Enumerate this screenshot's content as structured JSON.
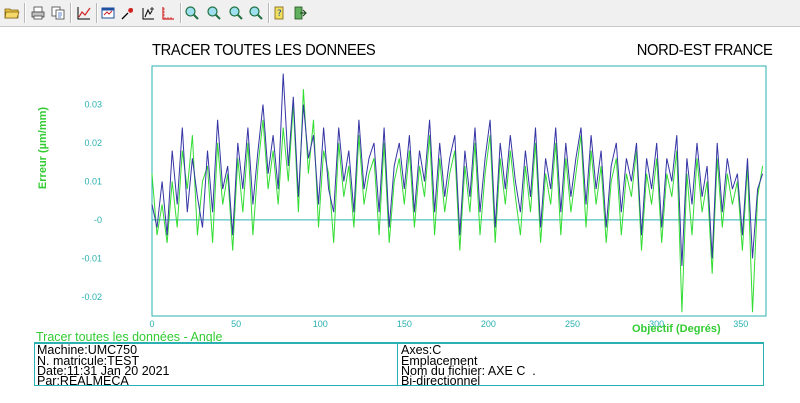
{
  "toolbar": {
    "buttons": [
      {
        "name": "open-folder-icon"
      },
      {
        "name": "print-icon"
      },
      {
        "name": "copy-icon"
      },
      {
        "name": "graph-icon"
      },
      {
        "name": "window-icon"
      },
      {
        "name": "marker-icon"
      },
      {
        "name": "cursor-icon"
      },
      {
        "name": "axis-icon"
      },
      {
        "name": "zoom-in-icon"
      },
      {
        "name": "zoom-out-icon"
      },
      {
        "name": "zoom-region-icon"
      },
      {
        "name": "zoom-fit-icon"
      },
      {
        "name": "help-icon"
      },
      {
        "name": "exit-icon"
      }
    ]
  },
  "header": {
    "title": "TRACER TOUTES LES DONNEES",
    "region": "NORD-EST FRANCE"
  },
  "colors": {
    "series_green": "#33dd33",
    "series_blue": "#3535a5",
    "axis": "#2ab0b0",
    "tick_label": "#2ab0b0",
    "ylabel": "#33cc33"
  },
  "chart_data": {
    "type": "line",
    "title": "TRACER TOUTES LES DONNEES",
    "xlabel": "Objectif (Degrés)",
    "ylabel": "Erreur (µm/mm)",
    "xlim": [
      0,
      365
    ],
    "ylim": [
      -0.025,
      0.04
    ],
    "xticks": [
      0,
      50,
      100,
      150,
      200,
      250,
      300,
      350
    ],
    "yticks": [
      0.03,
      0.02,
      0.01,
      0,
      -0.01,
      -0.02
    ],
    "ytick_labels": [
      "0.03",
      "0.02",
      "0.01",
      "-0",
      "-0.01",
      "-0.02"
    ],
    "grid": false,
    "series": [
      {
        "color": "#33dd33",
        "x": [
          0,
          3,
          6,
          9,
          12,
          15,
          18,
          21,
          24,
          27,
          30,
          33,
          36,
          39,
          42,
          45,
          48,
          51,
          54,
          57,
          60,
          63,
          66,
          69,
          72,
          75,
          78,
          81,
          84,
          87,
          90,
          93,
          96,
          99,
          102,
          105,
          108,
          111,
          114,
          117,
          120,
          123,
          126,
          129,
          132,
          135,
          138,
          141,
          144,
          147,
          150,
          153,
          156,
          159,
          162,
          165,
          168,
          171,
          174,
          177,
          180,
          183,
          186,
          189,
          192,
          195,
          198,
          201,
          204,
          207,
          210,
          213,
          216,
          219,
          222,
          225,
          228,
          231,
          234,
          237,
          240,
          243,
          246,
          249,
          252,
          255,
          258,
          261,
          264,
          267,
          270,
          273,
          276,
          279,
          282,
          285,
          288,
          291,
          294,
          297,
          300,
          303,
          306,
          309,
          312,
          315,
          318,
          321,
          324,
          327,
          330,
          333,
          336,
          339,
          342,
          345,
          348,
          351,
          354,
          357,
          360,
          363
        ],
        "y": [
          0.012,
          -0.004,
          0.004,
          -0.006,
          0.01,
          -0.002,
          0.018,
          0.008,
          0.022,
          -0.004,
          0.01,
          0.014,
          -0.006,
          0.02,
          0.004,
          0.012,
          -0.008,
          0.016,
          0.002,
          0.02,
          -0.004,
          0.014,
          0.026,
          0.008,
          0.018,
          0.004,
          0.024,
          0.01,
          0.03,
          0.002,
          0.034,
          0.012,
          0.026,
          -0.002,
          0.018,
          0.012,
          -0.006,
          0.02,
          0.006,
          0.014,
          -0.002,
          0.022,
          0.004,
          0.012,
          0.016,
          -0.004,
          0.02,
          -0.006,
          0.01,
          0.016,
          0.004,
          0.018,
          -0.002,
          0.014,
          0.006,
          0.022,
          -0.004,
          0.016,
          0.002,
          0.012,
          0.018,
          -0.008,
          0.014,
          0.002,
          0.02,
          -0.004,
          0.012,
          0.022,
          -0.006,
          0.016,
          0.004,
          0.018,
          0.006,
          -0.004,
          0.014,
          0.002,
          0.02,
          -0.006,
          0.012,
          0.004,
          0.02,
          -0.004,
          0.016,
          0.002,
          0.012,
          0.022,
          -0.002,
          0.018,
          0.004,
          0.014,
          -0.006,
          0.01,
          0.016,
          -0.004,
          0.012,
          0.006,
          0.018,
          -0.008,
          0.012,
          0.004,
          0.016,
          -0.006,
          0.012,
          0.006,
          0.018,
          -0.024,
          0.012,
          -0.004,
          0.016,
          0.002,
          0.01,
          -0.014,
          0.016,
          -0.002,
          0.012,
          0.004,
          0.01,
          -0.008,
          0.014,
          -0.024,
          0.006,
          0.014
        ]
      },
      {
        "color": "#3535a5",
        "x": [
          0,
          3,
          6,
          9,
          12,
          15,
          18,
          21,
          24,
          27,
          30,
          33,
          36,
          39,
          42,
          45,
          48,
          51,
          54,
          57,
          60,
          63,
          66,
          69,
          72,
          75,
          78,
          81,
          84,
          87,
          90,
          93,
          96,
          99,
          102,
          105,
          108,
          111,
          114,
          117,
          120,
          123,
          126,
          129,
          132,
          135,
          138,
          141,
          144,
          147,
          150,
          153,
          156,
          159,
          162,
          165,
          168,
          171,
          174,
          177,
          180,
          183,
          186,
          189,
          192,
          195,
          198,
          201,
          204,
          207,
          210,
          213,
          216,
          219,
          222,
          225,
          228,
          231,
          234,
          237,
          240,
          243,
          246,
          249,
          252,
          255,
          258,
          261,
          264,
          267,
          270,
          273,
          276,
          279,
          282,
          285,
          288,
          291,
          294,
          297,
          300,
          303,
          306,
          309,
          312,
          315,
          318,
          321,
          324,
          327,
          330,
          333,
          336,
          339,
          342,
          345,
          348,
          351,
          354,
          357,
          360,
          363
        ],
        "y": [
          0.004,
          -0.002,
          0.01,
          -0.004,
          0.018,
          0.004,
          0.024,
          0.002,
          0.016,
          0.006,
          -0.002,
          0.018,
          0.002,
          0.026,
          0.008,
          0.014,
          -0.004,
          0.02,
          0.008,
          0.024,
          0.004,
          0.018,
          0.03,
          0.012,
          0.022,
          0.008,
          0.038,
          0.014,
          0.032,
          0.006,
          0.03,
          0.016,
          0.022,
          0.004,
          0.024,
          0.008,
          0.002,
          0.024,
          0.01,
          0.018,
          0.002,
          0.026,
          0.008,
          0.016,
          0.02,
          0.002,
          0.024,
          -0.002,
          0.014,
          0.02,
          0.008,
          0.022,
          0.002,
          0.018,
          0.01,
          0.026,
          0.002,
          0.02,
          0.006,
          0.016,
          0.022,
          -0.004,
          0.018,
          0.006,
          0.024,
          0.002,
          0.016,
          0.026,
          -0.002,
          0.02,
          0.008,
          0.022,
          0.01,
          0.002,
          0.018,
          0.006,
          0.024,
          -0.002,
          0.016,
          0.008,
          0.024,
          0.002,
          0.02,
          0.006,
          0.016,
          0.024,
          0.004,
          0.022,
          0.008,
          0.018,
          -0.002,
          0.014,
          0.02,
          0.002,
          0.016,
          0.01,
          0.02,
          -0.004,
          0.016,
          0.008,
          0.02,
          -0.002,
          0.016,
          0.01,
          0.022,
          -0.012,
          0.016,
          0.004,
          0.02,
          0.006,
          0.014,
          -0.01,
          0.02,
          0.002,
          0.016,
          0.008,
          0.012,
          -0.004,
          0.016,
          -0.01,
          0.008,
          0.012
        ]
      }
    ]
  },
  "info": {
    "caption": "Tracer toutes les données - Angle",
    "machine": "Machine:UMC750",
    "serial": "N. matricule:TEST",
    "date": "Date:11:31 Jan 20 2021",
    "by": "Par:REALMECA",
    "axes": "Axes:C",
    "location": "Emplacement",
    "filename": "Nom du fichier: AXE C  .",
    "mode": "Bi-directionnel"
  }
}
